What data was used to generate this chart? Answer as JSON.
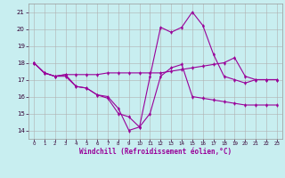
{
  "xlabel": "Windchill (Refroidissement éolien,°C)",
  "background_color": "#c8eef0",
  "line_color": "#990099",
  "grid_color": "#b0b0b0",
  "xlim": [
    -0.5,
    23.5
  ],
  "ylim": [
    13.5,
    21.5
  ],
  "yticks": [
    14,
    15,
    16,
    17,
    18,
    19,
    20,
    21
  ],
  "xticks": [
    0,
    1,
    2,
    3,
    4,
    5,
    6,
    7,
    8,
    9,
    10,
    11,
    12,
    13,
    14,
    15,
    16,
    17,
    18,
    19,
    20,
    21,
    22,
    23
  ],
  "line1_x": [
    0,
    1,
    2,
    3,
    4,
    5,
    6,
    7,
    8,
    9,
    10,
    11,
    12,
    13,
    14,
    15,
    16,
    17,
    18,
    19,
    20,
    21,
    22,
    23
  ],
  "line1_y": [
    18.0,
    17.4,
    17.2,
    17.2,
    16.6,
    16.5,
    16.1,
    16.0,
    15.3,
    14.0,
    14.2,
    15.0,
    17.2,
    17.7,
    17.9,
    16.0,
    15.9,
    15.8,
    15.7,
    15.6,
    15.5,
    15.5,
    15.5,
    15.5
  ],
  "line2_x": [
    0,
    1,
    2,
    3,
    4,
    5,
    6,
    7,
    8,
    9,
    10,
    11,
    12,
    13,
    14,
    15,
    16,
    17,
    18,
    19,
    20,
    21,
    22,
    23
  ],
  "line2_y": [
    18.0,
    17.4,
    17.2,
    17.3,
    17.3,
    17.3,
    17.3,
    17.4,
    17.4,
    17.4,
    17.4,
    17.4,
    17.4,
    17.5,
    17.6,
    17.7,
    17.8,
    17.9,
    18.0,
    18.3,
    17.2,
    17.0,
    17.0,
    17.0
  ],
  "line3_x": [
    0,
    1,
    2,
    3,
    4,
    5,
    6,
    7,
    8,
    9,
    10,
    11,
    12,
    13,
    14,
    15,
    16,
    17,
    18,
    19,
    20,
    21,
    22,
    23
  ],
  "line3_y": [
    18.0,
    17.4,
    17.2,
    17.3,
    16.6,
    16.5,
    16.1,
    15.9,
    15.0,
    14.8,
    14.2,
    17.2,
    20.1,
    19.8,
    20.1,
    21.0,
    20.2,
    18.5,
    17.2,
    17.0,
    16.8,
    17.0,
    17.0,
    17.0
  ]
}
